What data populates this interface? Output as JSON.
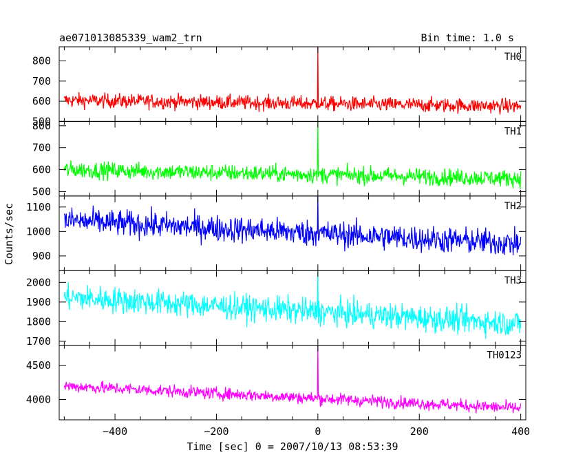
{
  "chart_data": {
    "type": "line",
    "title_left": "ae071013085339_wam2_trn",
    "title_right": "Bin time: 1.0 s",
    "xlabel": "Time [sec] 0 = 2007/10/13 08:53:39",
    "ylabel": "Counts/sec",
    "xlim": [
      -510,
      410
    ],
    "x_ticks": [
      -400,
      -200,
      0,
      200,
      400
    ],
    "x_tick_labels": [
      "−400",
      "−200",
      "0",
      "200",
      "400"
    ],
    "x_range": [
      -500,
      400
    ],
    "grid": false,
    "spike_x": 0,
    "series": [
      {
        "name": "TH0",
        "color": "#ff0000",
        "ylim": [
          500,
          870
        ],
        "y_ticks": [
          500,
          600,
          700,
          800
        ],
        "start": 605,
        "end": 575,
        "noise": 30,
        "spike": 870
      },
      {
        "name": "TH1",
        "color": "#00ff00",
        "ylim": [
          480,
          820
        ],
        "y_ticks": [
          500,
          600,
          700,
          800
        ],
        "start": 600,
        "end": 560,
        "noise": 32,
        "spike": 820
      },
      {
        "name": "TH2",
        "color": "#0000ff",
        "ylim": [
          840,
          1145
        ],
        "y_ticks": [
          900,
          1000,
          1100
        ],
        "start": 1045,
        "end": 950,
        "noise": 45,
        "spike": 1145
      },
      {
        "name": "TH3",
        "color": "#00ffff",
        "ylim": [
          1680,
          2060
        ],
        "y_ticks": [
          1700,
          1800,
          1900,
          2000
        ],
        "start": 1925,
        "end": 1790,
        "noise": 55,
        "spike": 2060
      },
      {
        "name": "TH0123",
        "color": "#ff00ff",
        "ylim": [
          3700,
          4800
        ],
        "y_ticks": [
          4000,
          4500
        ],
        "start": 4200,
        "end": 3870,
        "noise": 75,
        "spike": 4800
      }
    ]
  }
}
